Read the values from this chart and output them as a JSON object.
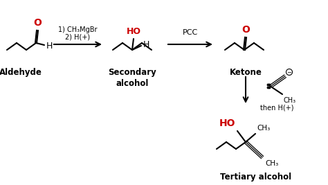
{
  "bg": "#ffffff",
  "black": "#000000",
  "red": "#cc0000",
  "aldehyde_label": "Aldehyde",
  "sec_alcohol_label": "Secondary\nalcohol",
  "ketone_label": "Ketone",
  "tertiary_label": "Tertiary alcohol",
  "reagent1a": "1) CH₃MgBr",
  "reagent1b": "2) H(+)",
  "reagent2": "PCC",
  "reagent3b": "then H(+)",
  "fig_w": 4.74,
  "fig_h": 2.67,
  "dpi": 100
}
